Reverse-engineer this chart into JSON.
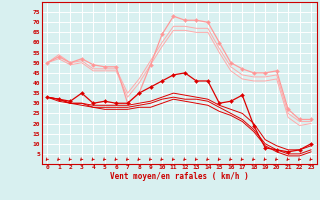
{
  "x": [
    0,
    1,
    2,
    3,
    4,
    5,
    6,
    7,
    8,
    9,
    10,
    11,
    12,
    13,
    14,
    15,
    16,
    17,
    18,
    19,
    20,
    21,
    22,
    23
  ],
  "series": [
    {
      "values": [
        33,
        32,
        31,
        35,
        30,
        31,
        30,
        30,
        35,
        38,
        41,
        44,
        45,
        41,
        41,
        30,
        31,
        34,
        19,
        8,
        7,
        6,
        7,
        10
      ],
      "color": "#dd0000",
      "linewidth": 0.9,
      "marker": "D",
      "markersize": 2.0,
      "zorder": 5
    },
    {
      "values": [
        33,
        32,
        30,
        30,
        29,
        29,
        29,
        29,
        30,
        31,
        33,
        35,
        34,
        33,
        32,
        29,
        27,
        25,
        20,
        12,
        9,
        7,
        7,
        9
      ],
      "color": "#dd0000",
      "linewidth": 0.7,
      "marker": null,
      "markersize": 0,
      "zorder": 3
    },
    {
      "values": [
        33,
        31,
        30,
        29,
        28,
        27,
        27,
        27,
        28,
        28,
        30,
        32,
        31,
        30,
        29,
        26,
        24,
        21,
        16,
        9,
        6,
        4,
        4,
        6
      ],
      "color": "#dd0000",
      "linewidth": 0.7,
      "marker": null,
      "markersize": 0,
      "zorder": 3
    },
    {
      "values": [
        33,
        32,
        30,
        30,
        28,
        28,
        28,
        28,
        29,
        30,
        32,
        33,
        32,
        32,
        31,
        28,
        25,
        22,
        17,
        10,
        7,
        5,
        5,
        7
      ],
      "color": "#dd0000",
      "linewidth": 0.7,
      "marker": null,
      "markersize": 0,
      "zorder": 3
    },
    {
      "values": [
        50,
        53,
        50,
        52,
        49,
        48,
        48,
        30,
        35,
        49,
        64,
        73,
        71,
        71,
        70,
        60,
        50,
        47,
        45,
        45,
        46,
        27,
        22,
        22
      ],
      "color": "#ff9999",
      "linewidth": 0.9,
      "marker": "D",
      "markersize": 2.0,
      "zorder": 4
    },
    {
      "values": [
        50,
        54,
        50,
        51,
        47,
        47,
        47,
        35,
        42,
        51,
        60,
        68,
        68,
        67,
        67,
        57,
        48,
        44,
        43,
        43,
        44,
        25,
        21,
        21
      ],
      "color": "#ffaaaa",
      "linewidth": 0.7,
      "marker": null,
      "markersize": 0,
      "zorder": 2
    },
    {
      "values": [
        50,
        52,
        49,
        50,
        46,
        46,
        46,
        33,
        40,
        49,
        58,
        66,
        66,
        65,
        65,
        55,
        46,
        42,
        41,
        41,
        42,
        23,
        19,
        20
      ],
      "color": "#ffaaaa",
      "linewidth": 0.7,
      "marker": null,
      "markersize": 0,
      "zorder": 2
    }
  ],
  "ylim": [
    0,
    80
  ],
  "yticks": [
    5,
    10,
    15,
    20,
    25,
    30,
    35,
    40,
    45,
    50,
    55,
    60,
    65,
    70,
    75
  ],
  "xticks": [
    0,
    1,
    2,
    3,
    4,
    5,
    6,
    7,
    8,
    9,
    10,
    11,
    12,
    13,
    14,
    15,
    16,
    17,
    18,
    19,
    20,
    21,
    22,
    23
  ],
  "xlabel": "Vent moyen/en rafales ( km/h )",
  "bg_color": "#d8f0f0",
  "grid_color": "#ffffff",
  "text_color": "#cc0000",
  "arrow_color": "#cc0000"
}
